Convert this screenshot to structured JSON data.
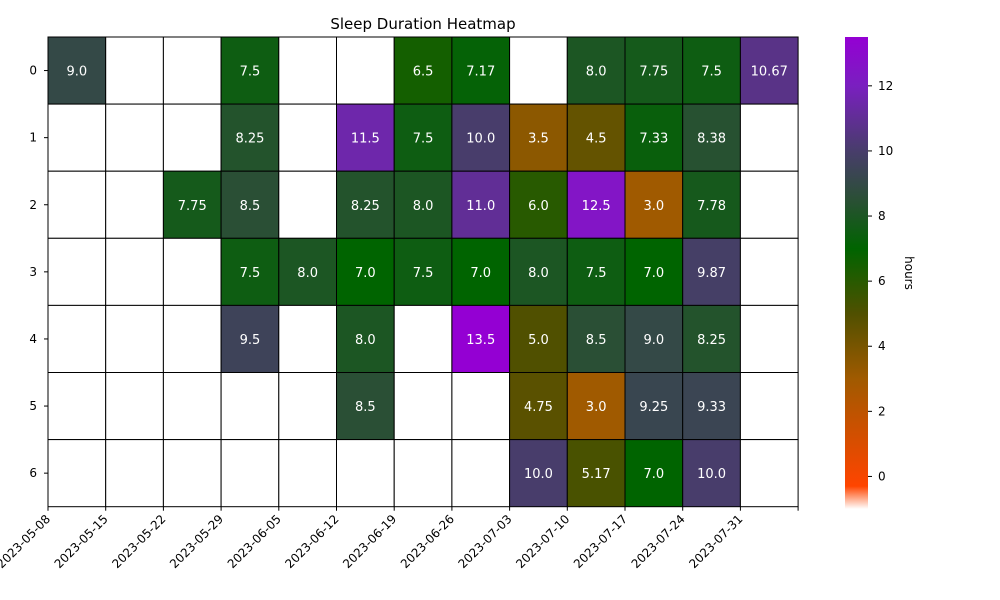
{
  "chart_data": {
    "type": "heatmap",
    "title": "Sleep Duration Heatmap",
    "colorbar_label": "hours",
    "x_categories": [
      "2023-05-08",
      "2023-05-15",
      "2023-05-22",
      "2023-05-29",
      "2023-06-05",
      "2023-06-12",
      "2023-06-19",
      "2023-06-26",
      "2023-07-03",
      "2023-07-10",
      "2023-07-17",
      "2023-07-24",
      "2023-07-31"
    ],
    "y_categories": [
      "0",
      "1",
      "2",
      "3",
      "4",
      "5",
      "6"
    ],
    "values": [
      [
        9.0,
        null,
        null,
        7.5,
        null,
        null,
        6.5,
        7.17,
        null,
        8.0,
        7.75,
        7.5,
        10.67
      ],
      [
        null,
        null,
        null,
        8.25,
        null,
        11.5,
        7.5,
        10.0,
        3.5,
        4.5,
        7.33,
        8.38,
        null
      ],
      [
        null,
        null,
        7.75,
        8.5,
        null,
        8.25,
        8.0,
        11.0,
        6.0,
        12.5,
        3.0,
        7.78,
        null
      ],
      [
        null,
        null,
        null,
        7.5,
        8.0,
        7.0,
        7.5,
        7.0,
        8.0,
        7.5,
        7.0,
        9.87,
        null
      ],
      [
        null,
        null,
        null,
        9.5,
        null,
        8.0,
        null,
        13.5,
        5.0,
        8.5,
        9.0,
        8.25,
        null
      ],
      [
        null,
        null,
        null,
        null,
        null,
        8.5,
        null,
        null,
        4.75,
        3.0,
        9.25,
        9.33,
        null
      ],
      [
        null,
        null,
        null,
        null,
        null,
        null,
        null,
        null,
        10.0,
        5.17,
        7.0,
        10.0,
        null
      ]
    ],
    "value_labels": [
      [
        "9.0",
        "",
        "",
        "7.5",
        "",
        "",
        "6.5",
        "7.17",
        "",
        "8.0",
        "7.75",
        "7.5",
        "10.67"
      ],
      [
        "",
        "",
        "",
        "8.25",
        "",
        "11.5",
        "7.5",
        "10.0",
        "3.5",
        "4.5",
        "7.33",
        "8.38",
        ""
      ],
      [
        "",
        "",
        "7.75",
        "8.5",
        "",
        "8.25",
        "8.0",
        "11.0",
        "6.0",
        "12.5",
        "3.0",
        "7.78",
        ""
      ],
      [
        "",
        "",
        "",
        "7.5",
        "8.0",
        "7.0",
        "7.5",
        "7.0",
        "8.0",
        "7.5",
        "7.0",
        "9.87",
        ""
      ],
      [
        "",
        "",
        "",
        "9.5",
        "",
        "8.0",
        "",
        "13.5",
        "5.0",
        "8.5",
        "9.0",
        "8.25",
        ""
      ],
      [
        "",
        "",
        "",
        "",
        "",
        "8.5",
        "",
        "",
        "4.75",
        "3.0",
        "9.25",
        "9.33",
        ""
      ],
      [
        "",
        "",
        "",
        "",
        "",
        "",
        "",
        "",
        "10.0",
        "5.17",
        "7.0",
        "10.0",
        ""
      ]
    ],
    "color_range": [
      -1,
      13.5
    ],
    "colorbar_ticks": [
      0,
      2,
      4,
      6,
      8,
      10,
      12
    ],
    "colorbar_tick_labels": [
      "0",
      "2",
      "4",
      "6",
      "8",
      "10",
      "12"
    ],
    "color_stops": [
      {
        "value": -1.0,
        "color": "#ffffff"
      },
      {
        "value": -0.3,
        "color": "#ff4500"
      },
      {
        "value": 3.0,
        "color": "#a05a00"
      },
      {
        "value": 5.0,
        "color": "#505000"
      },
      {
        "value": 7.0,
        "color": "#006400"
      },
      {
        "value": 8.5,
        "color": "#2a4f35"
      },
      {
        "value": 10.0,
        "color": "#483d6b"
      },
      {
        "value": 12.0,
        "color": "#7a1fc0"
      },
      {
        "value": 13.5,
        "color": "#9400d3"
      }
    ],
    "empty_cell_color": "#ffffff",
    "grid": true
  }
}
